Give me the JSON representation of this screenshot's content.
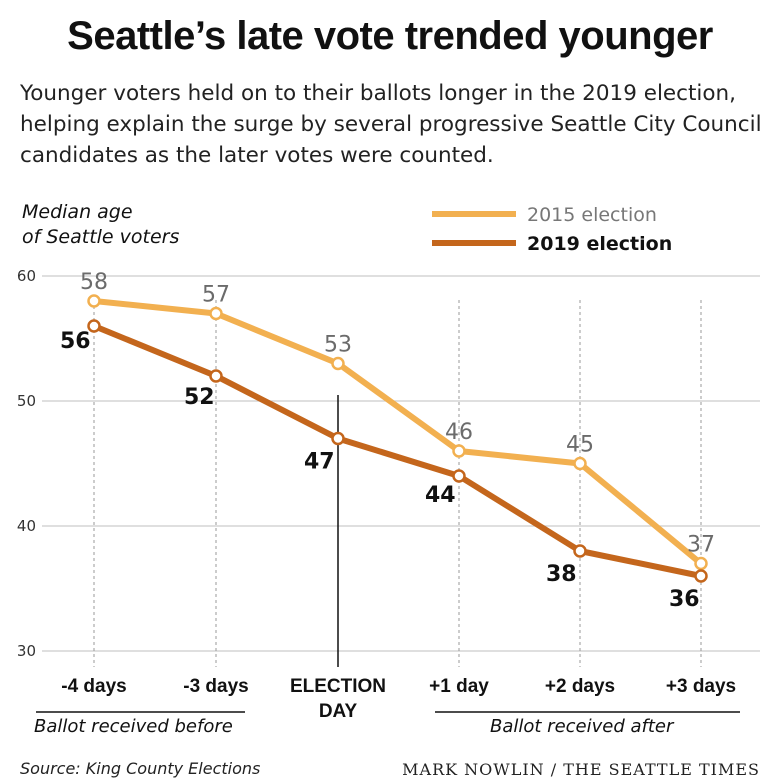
{
  "title": "Seattle’s late vote trended younger",
  "subtitle": "Younger voters held on to their ballots longer in the 2019 election, helping explain the surge by several progressive Seattle City Council candidates as the later votes were counted.",
  "y_axis_label_line1": "Median age",
  "y_axis_label_line2": "of Seattle voters",
  "group_before": "Ballot received before",
  "group_after": "Ballot received after",
  "source": "Source: King County Elections",
  "credit": "MARK NOWLIN / THE SEATTLE TIMES",
  "colors": {
    "series_2015": "#f2b050",
    "series_2019": "#c4661c",
    "grid": "#cccccc",
    "axis": "#111111"
  },
  "chart_data": {
    "type": "line",
    "categories": [
      "-4 days",
      "-3 days",
      "ELECTION DAY",
      "+1 day",
      "+2 days",
      "+3 days"
    ],
    "category_lines": [
      [
        "-4 days"
      ],
      [
        "-3 days"
      ],
      [
        "ELECTION",
        "DAY"
      ],
      [
        "+1 day"
      ],
      [
        "+2 days"
      ],
      [
        "+3 days"
      ]
    ],
    "yticks": [
      30,
      40,
      50,
      60
    ],
    "ylim": [
      30,
      60
    ],
    "grid": true,
    "legend_position": "top-right",
    "series": [
      {
        "name": "2015 election",
        "values": [
          58,
          57,
          53,
          46,
          45,
          37
        ],
        "color": "#f2b050"
      },
      {
        "name": "2019 election",
        "values": [
          56,
          52,
          47,
          44,
          38,
          36
        ],
        "color": "#c4661c"
      }
    ]
  }
}
